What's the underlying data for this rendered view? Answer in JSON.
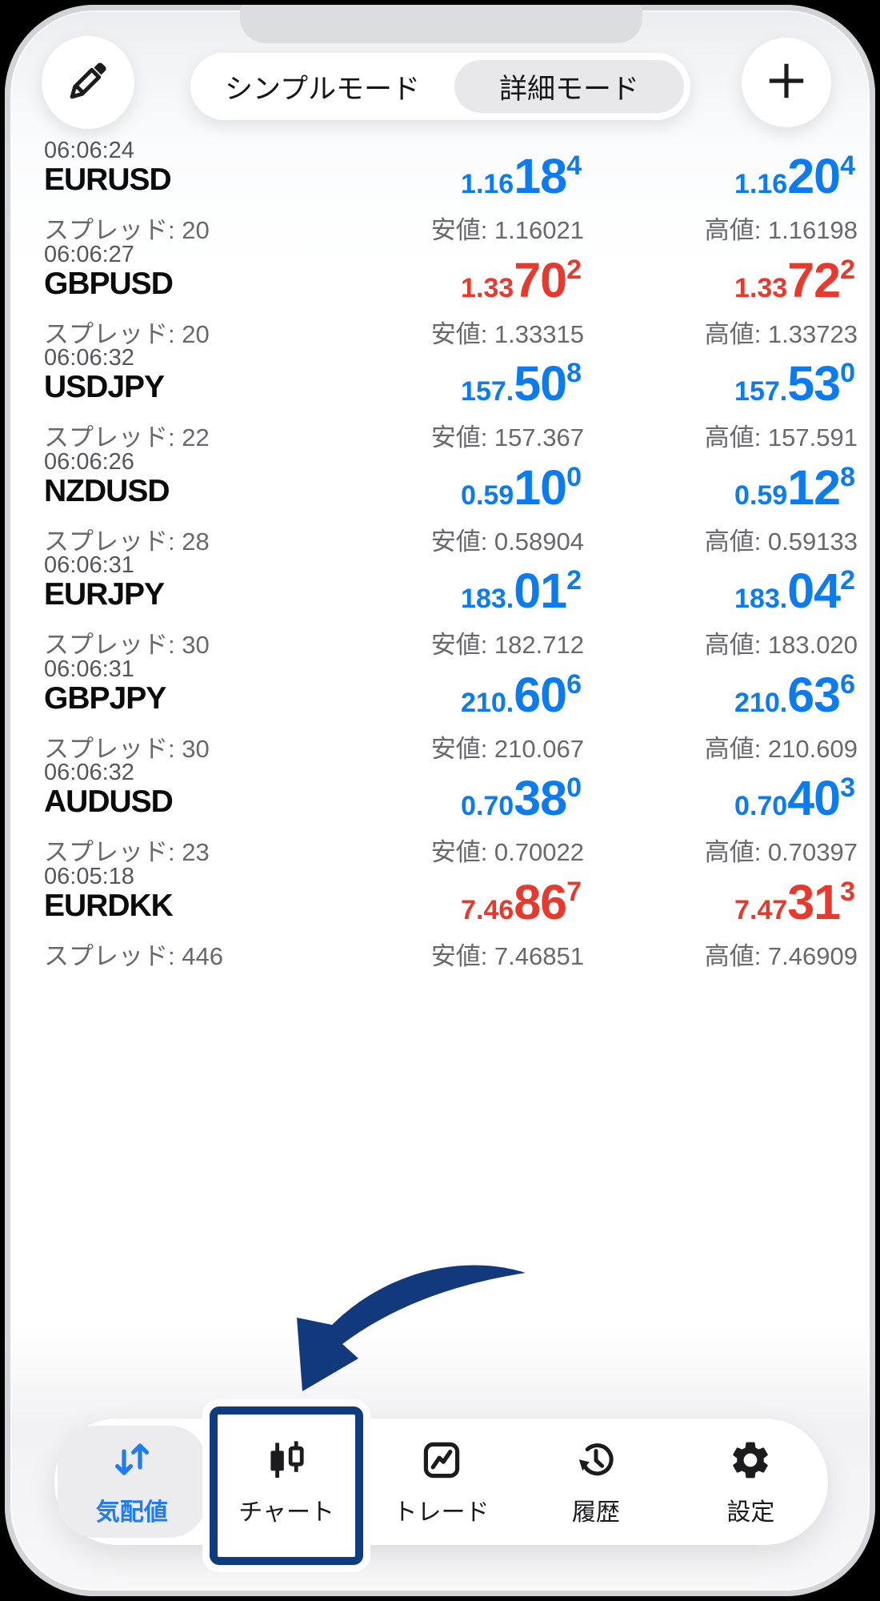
{
  "colors": {
    "up": "#0b7bf2",
    "down": "#e8392c",
    "nav_active": "#1f7cf6",
    "callout_arrow": "#11397c",
    "chart_box_border": "#0e3c7e"
  },
  "header": {
    "mode_simple": "シンプルモード",
    "mode_detail": "詳細モード",
    "selected_mode": "詳細モード",
    "edit_icon": "pencil-icon",
    "add_icon": "plus-icon"
  },
  "rows": [
    {
      "time": "06:06:24",
      "symbol": "EURUSD",
      "direction": "up",
      "bid": {
        "small": "1.16",
        "big": "18",
        "sup": "4"
      },
      "ask": {
        "small": "1.16",
        "big": "20",
        "sup": "4"
      },
      "spread_text": "スプレッド: 20",
      "low_text": "安値: 1.16021",
      "high_text": "高値: 1.16198"
    },
    {
      "time": "06:06:27",
      "symbol": "GBPUSD",
      "direction": "down",
      "bid": {
        "small": "1.33",
        "big": "70",
        "sup": "2"
      },
      "ask": {
        "small": "1.33",
        "big": "72",
        "sup": "2"
      },
      "spread_text": "スプレッド: 20",
      "low_text": "安値: 1.33315",
      "high_text": "高値: 1.33723"
    },
    {
      "time": "06:06:32",
      "symbol": "USDJPY",
      "direction": "up",
      "bid": {
        "small": "157.",
        "big": "50",
        "sup": "8"
      },
      "ask": {
        "small": "157.",
        "big": "53",
        "sup": "0"
      },
      "spread_text": "スプレッド: 22",
      "low_text": "安値: 157.367",
      "high_text": "高値: 157.591"
    },
    {
      "time": "06:06:26",
      "symbol": "NZDUSD",
      "direction": "up",
      "bid": {
        "small": "0.59",
        "big": "10",
        "sup": "0"
      },
      "ask": {
        "small": "0.59",
        "big": "12",
        "sup": "8"
      },
      "spread_text": "スプレッド: 28",
      "low_text": "安値: 0.58904",
      "high_text": "高値: 0.59133"
    },
    {
      "time": "06:06:31",
      "symbol": "EURJPY",
      "direction": "up",
      "bid": {
        "small": "183.",
        "big": "01",
        "sup": "2"
      },
      "ask": {
        "small": "183.",
        "big": "04",
        "sup": "2"
      },
      "spread_text": "スプレッド: 30",
      "low_text": "安値: 182.712",
      "high_text": "高値: 183.020"
    },
    {
      "time": "06:06:31",
      "symbol": "GBPJPY",
      "direction": "up",
      "bid": {
        "small": "210.",
        "big": "60",
        "sup": "6"
      },
      "ask": {
        "small": "210.",
        "big": "63",
        "sup": "6"
      },
      "spread_text": "スプレッド: 30",
      "low_text": "安値: 210.067",
      "high_text": "高値: 210.609"
    },
    {
      "time": "06:06:32",
      "symbol": "AUDUSD",
      "direction": "up",
      "bid": {
        "small": "0.70",
        "big": "38",
        "sup": "0"
      },
      "ask": {
        "small": "0.70",
        "big": "40",
        "sup": "3"
      },
      "spread_text": "スプレッド: 23",
      "low_text": "安値: 0.70022",
      "high_text": "高値: 0.70397"
    },
    {
      "time": "06:05:18",
      "symbol": "EURDKK",
      "direction": "down",
      "bid": {
        "small": "7.46",
        "big": "86",
        "sup": "7"
      },
      "ask": {
        "small": "7.47",
        "big": "31",
        "sup": "3"
      },
      "spread_text": "スプレッド: 446",
      "low_text": "安値: 7.46851",
      "high_text": "高値: 7.46909"
    }
  ],
  "nav": {
    "items": [
      {
        "label": "気配値",
        "icon": "quotes-arrows-icon",
        "state": "active"
      },
      {
        "label": "チャート",
        "icon": "candlestick-icon",
        "state": "highlighted-by-arrow"
      },
      {
        "label": "トレード",
        "icon": "trade-chart-icon",
        "state": "normal"
      },
      {
        "label": "履歴",
        "icon": "history-clock-icon",
        "state": "normal"
      },
      {
        "label": "設定",
        "icon": "settings-gear-icon",
        "state": "normal"
      }
    ]
  }
}
